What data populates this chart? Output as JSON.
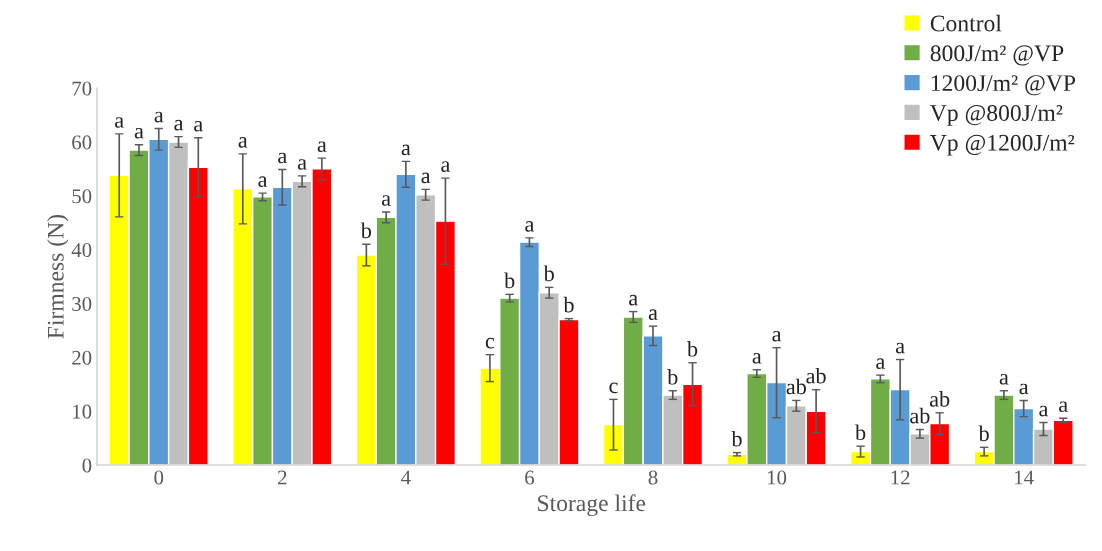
{
  "chart_data": {
    "type": "bar",
    "xlabel": "Storage life",
    "ylabel": "Firmness (N)",
    "categories": [
      "0",
      "2",
      "4",
      "6",
      "8",
      "10",
      "12",
      "14"
    ],
    "ylim": [
      0,
      70
    ],
    "yticks": [
      0,
      10,
      20,
      30,
      40,
      50,
      60,
      70
    ],
    "grid": false,
    "legend": "top right",
    "series": [
      {
        "name": "Control",
        "color": "#ffff00",
        "values": [
          53.8,
          51.3,
          39,
          18,
          7.5,
          2,
          2.5,
          2.5
        ],
        "errors": [
          7.7,
          6.5,
          2,
          2.5,
          4.7,
          0.3,
          1,
          0.8
        ],
        "value_labels": [
          "a",
          "a",
          "b",
          "c",
          "c",
          "b",
          "b",
          "b"
        ]
      },
      {
        "name": "800J/m² @VP",
        "color": "#70ad47",
        "values": [
          58.5,
          49.8,
          46,
          31,
          27.5,
          17,
          16,
          13
        ],
        "errors": [
          1,
          0.7,
          1,
          0.7,
          1,
          0.7,
          0.7,
          0.8
        ],
        "value_labels": [
          "a",
          "a",
          "a",
          "b",
          "a",
          "a",
          "a",
          "a"
        ]
      },
      {
        "name": "1200J/m² @VP",
        "color": "#5b9bd5",
        "values": [
          60.5,
          51.6,
          54,
          41.4,
          24,
          15.3,
          14,
          10.5
        ],
        "errors": [
          2,
          3.3,
          2.4,
          0.8,
          1.8,
          6.5,
          5.6,
          1.5
        ],
        "value_labels": [
          "a",
          "a",
          "a",
          "a",
          "a",
          "a",
          "a",
          "a"
        ]
      },
      {
        "name": "Vp @800J/m²",
        "color": "#bfbfbf",
        "values": [
          60,
          52.7,
          50.2,
          32,
          13,
          11,
          5.8,
          6.7
        ],
        "errors": [
          1,
          1,
          1,
          1,
          0.8,
          1,
          0.8,
          1.2
        ],
        "value_labels": [
          "a",
          "a",
          "a",
          "b",
          "b",
          "ab",
          "ab",
          "a"
        ]
      },
      {
        "name": "Vp @1200J/m²",
        "color": "#ff0000",
        "values": [
          55.3,
          55,
          45.3,
          27,
          15,
          10,
          7.7,
          8.3
        ],
        "errors": [
          5.5,
          2,
          8,
          0.2,
          4,
          4,
          2,
          0.4
        ],
        "value_labels": [
          "a",
          "a",
          "a",
          "b",
          "b",
          "ab",
          "ab",
          "a"
        ]
      }
    ]
  }
}
